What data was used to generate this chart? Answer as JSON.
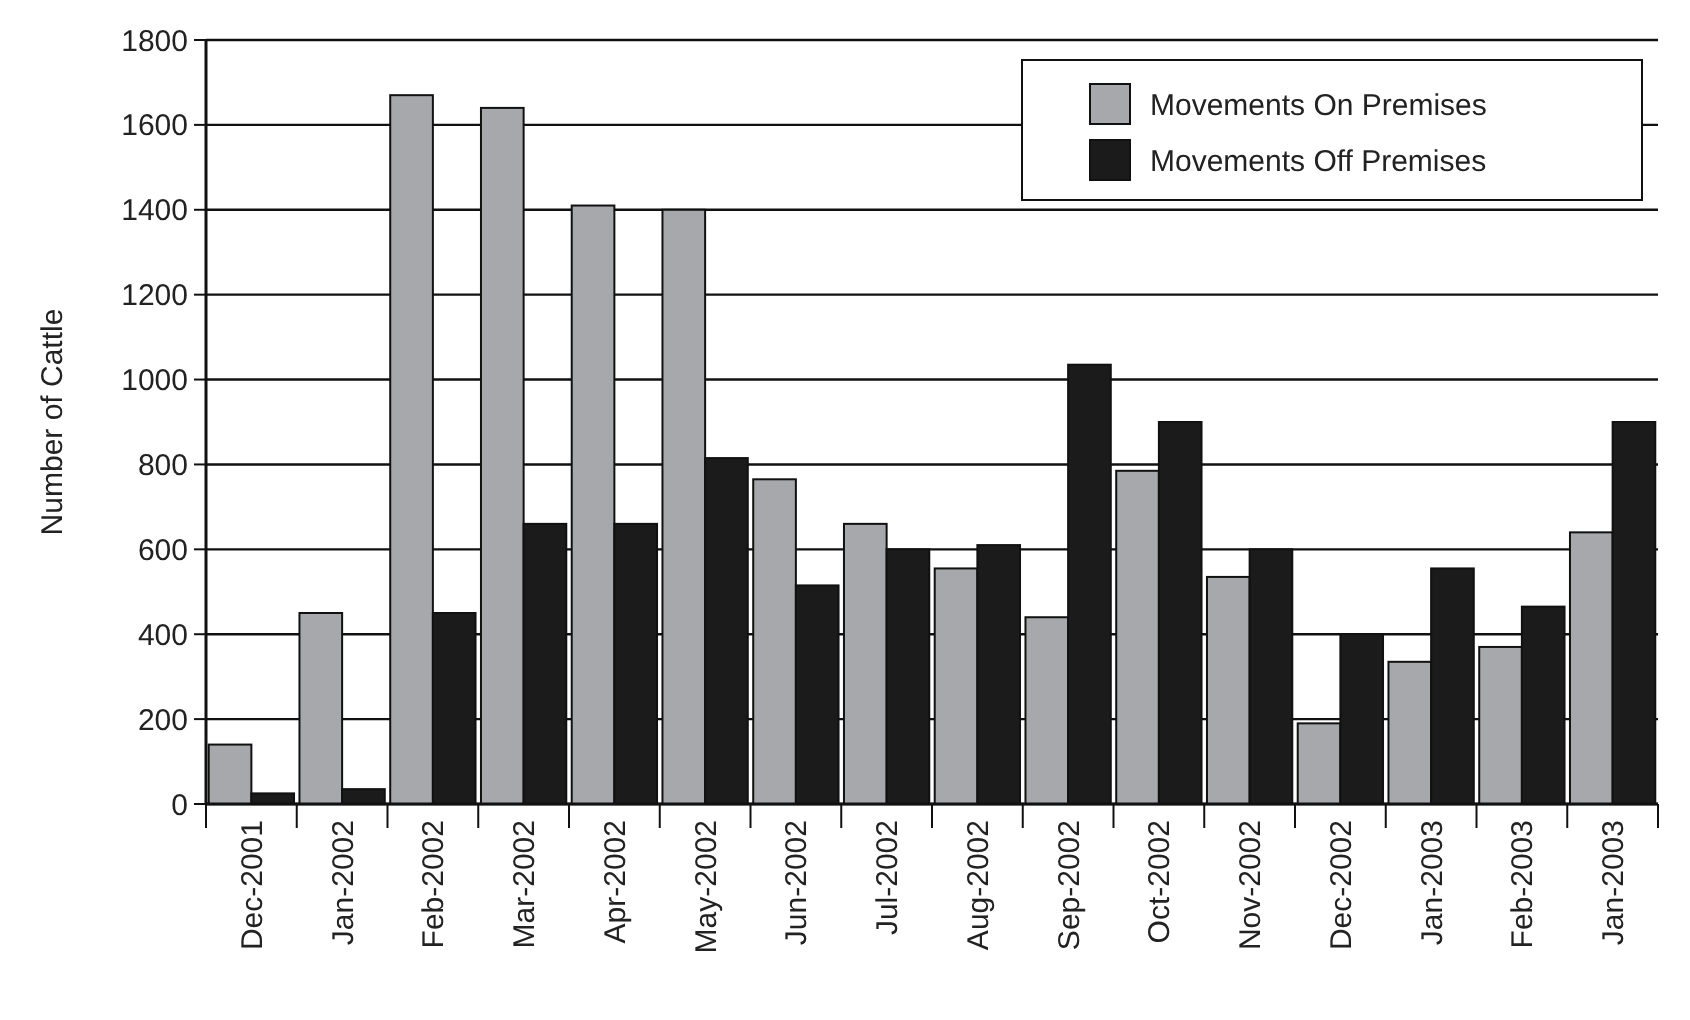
{
  "chart_data": {
    "type": "bar",
    "ylabel": "Number of Cattle",
    "categories": [
      "Dec-2001",
      "Jan-2002",
      "Feb-2002",
      "Mar-2002",
      "Apr-2002",
      "May-2002",
      "Jun-2002",
      "Jul-2002",
      "Aug-2002",
      "Sep-2002",
      "Oct-2002",
      "Nov-2002",
      "Dec-2002",
      "Jan-2003",
      "Feb-2003",
      "Jan-2003"
    ],
    "series": [
      {
        "name": "Movements On Premises",
        "color": "#a7a8ab",
        "values": [
          140,
          450,
          1670,
          1640,
          1410,
          1400,
          765,
          660,
          555,
          440,
          785,
          535,
          190,
          335,
          370,
          640
        ]
      },
      {
        "name": "Movements Off Premises",
        "color": "#1c1b1c",
        "values": [
          25,
          35,
          450,
          660,
          660,
          815,
          515,
          600,
          610,
          1035,
          900,
          600,
          400,
          555,
          465,
          900
        ]
      }
    ],
    "ylim": [
      0,
      1800
    ],
    "yticks": [
      0,
      200,
      400,
      600,
      800,
      1000,
      1200,
      1400,
      1600,
      1800
    ],
    "grid": "y",
    "legend": "top right"
  }
}
